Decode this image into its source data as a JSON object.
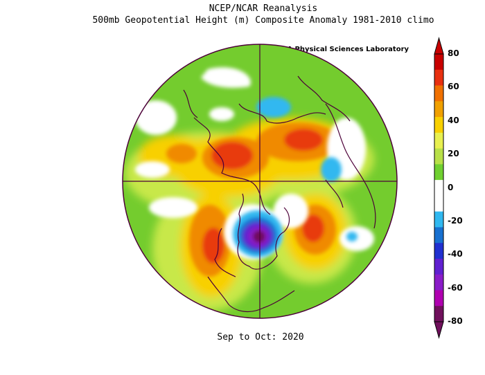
{
  "title_line1": "NCEP/NCAR Reanalysis",
  "title_line2": "500mb Geopotential Height (m) Composite Anomaly 1981-2010 climo",
  "credit": "NOAA Physical Sciences Laboratory",
  "period": "Sep to Oct: 2020",
  "colorbar": {
    "labels": [
      "80",
      "60",
      "40",
      "20",
      "0",
      "-20",
      "-40",
      "-60",
      "-80"
    ],
    "colors": [
      "#c80000",
      "#e83010",
      "#f07000",
      "#f0a000",
      "#f8d000",
      "#e8f050",
      "#b8e048",
      "#70d030",
      "#ffffff",
      "#ffffff",
      "#30b8f0",
      "#1870d0",
      "#2030d0",
      "#6020d0",
      "#8a1cc8",
      "#b000b0",
      "#70105c"
    ]
  },
  "colors": {
    "ocean_base": "#74cc2e",
    "coastline": "#4c0038",
    "grid": "#4c0038"
  }
}
